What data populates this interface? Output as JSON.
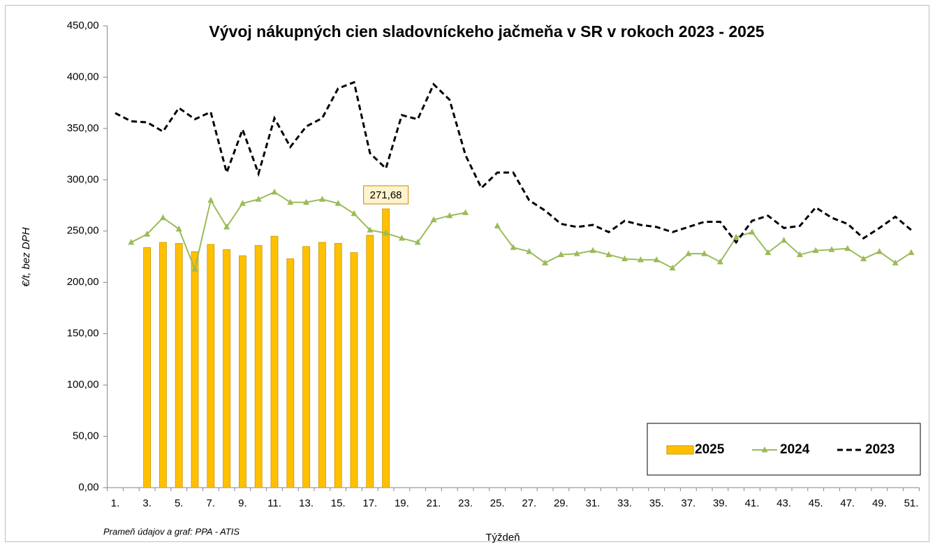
{
  "chart_data": {
    "type": "bar",
    "title": "Vývoj nákupných cien sladovníckeho jačmeňa v SR v rokoch 2023 - 2025",
    "ylabel": "€/t, bez DPH",
    "xlabel": "Týždeň",
    "source": "Prameň údajov a graf: PPA - ATIS",
    "categories": [
      "1.",
      null,
      "3.",
      null,
      "5.",
      null,
      "7.",
      null,
      "9.",
      null,
      "11.",
      null,
      "13.",
      null,
      "15.",
      null,
      "17.",
      null,
      "19.",
      null,
      "21.",
      null,
      "23.",
      null,
      "25.",
      null,
      "27.",
      null,
      "29.",
      null,
      "31.",
      null,
      "33.",
      null,
      "35.",
      null,
      "37.",
      null,
      "39.",
      null,
      "41.",
      null,
      "43.",
      null,
      "45.",
      null,
      "47.",
      null,
      "49.",
      null,
      "51."
    ],
    "ylim": [
      0,
      450
    ],
    "yticks": [
      {
        "value": 0,
        "label": "0,00"
      },
      {
        "value": 50,
        "label": "50,00"
      },
      {
        "value": 100,
        "label": "100,00"
      },
      {
        "value": 150,
        "label": "150,00"
      },
      {
        "value": 200,
        "label": "200,00"
      },
      {
        "value": 250,
        "label": "250,00"
      },
      {
        "value": 300,
        "label": "300,00"
      },
      {
        "value": 350,
        "label": "350,00"
      },
      {
        "value": 400,
        "label": "400,00"
      },
      {
        "value": 450,
        "label": "450,00"
      }
    ],
    "legend": "bottom-right",
    "series": [
      {
        "name": "2025",
        "type": "bar",
        "color": "#FFC000",
        "values": [
          null,
          null,
          234,
          239,
          238,
          230,
          237,
          232,
          226,
          236,
          245,
          223,
          235,
          239,
          238,
          229,
          246,
          271.68,
          null,
          null,
          null,
          null,
          null,
          null,
          null,
          null,
          null,
          null,
          null,
          null,
          null,
          null,
          null,
          null,
          null,
          null,
          null,
          null,
          null,
          null,
          null,
          null,
          null,
          null,
          null,
          null,
          null,
          null,
          null,
          null,
          null
        ],
        "value_labels": [
          null,
          null,
          null,
          null,
          null,
          null,
          null,
          null,
          null,
          null,
          null,
          null,
          null,
          null,
          null,
          null,
          null,
          "271,68",
          null,
          null,
          null,
          null,
          null,
          null,
          null,
          null,
          null,
          null,
          null,
          null,
          null,
          null,
          null,
          null,
          null,
          null,
          null,
          null,
          null,
          null,
          null,
          null,
          null,
          null,
          null,
          null,
          null,
          null,
          null,
          null,
          null
        ]
      },
      {
        "name": "2024",
        "type": "line",
        "color": "#9BBB59",
        "marker": "triangle",
        "values": [
          null,
          239,
          247,
          263,
          252,
          213,
          280,
          254,
          277,
          281,
          288,
          278,
          278,
          281,
          277,
          267,
          251,
          248,
          243,
          239,
          261,
          265,
          268,
          null,
          255,
          234,
          230,
          219,
          227,
          228,
          231,
          227,
          223,
          222,
          222,
          214,
          228,
          228,
          220,
          244,
          249,
          229,
          241,
          227,
          231,
          232,
          233,
          223,
          230,
          219,
          229
        ]
      },
      {
        "name": "2023",
        "type": "line",
        "color": "#000000",
        "dashed": true,
        "values": [
          365,
          357,
          356,
          347,
          370,
          359,
          366,
          307,
          349,
          306,
          360,
          332,
          352,
          360,
          389,
          395,
          326,
          311,
          363,
          359,
          393,
          378,
          324,
          292,
          307,
          307,
          280,
          270,
          257,
          254,
          256,
          249,
          260,
          256,
          254,
          249,
          254,
          259,
          259,
          239,
          260,
          265,
          253,
          255,
          273,
          263,
          257,
          243,
          253,
          264,
          251
        ]
      }
    ]
  }
}
